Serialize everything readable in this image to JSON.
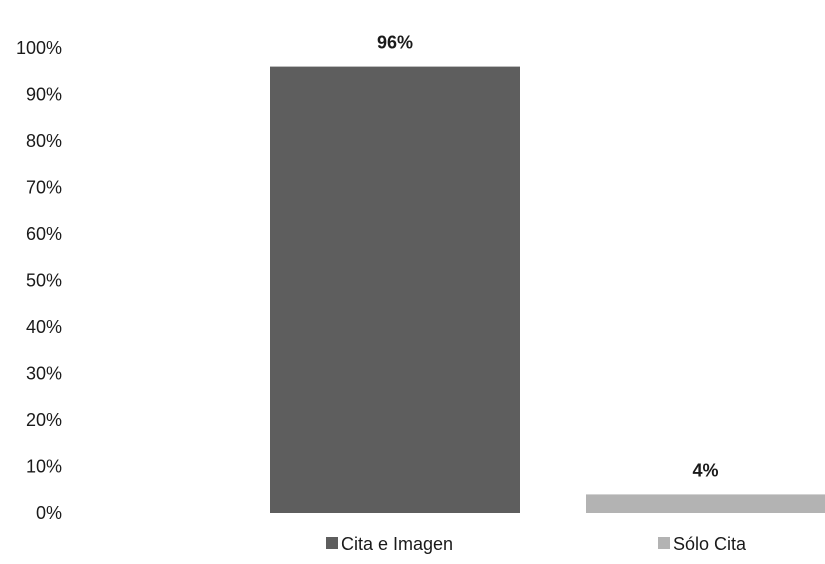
{
  "chart_data": {
    "type": "bar",
    "title": "",
    "xlabel": "",
    "ylabel": "",
    "ylim": [
      0,
      100
    ],
    "y_ticks": [
      "0%",
      "10%",
      "20%",
      "30%",
      "40%",
      "50%",
      "60%",
      "70%",
      "80%",
      "90%",
      "100%"
    ],
    "grid": false,
    "legend_position": "bottom",
    "series": [
      {
        "name": "Cita e Imagen",
        "value": 96,
        "label": "96%",
        "color": "#5e5e5e"
      },
      {
        "name": "Sólo Cita",
        "value": 4,
        "label": "4%",
        "color": "#b3b3b3"
      }
    ]
  }
}
